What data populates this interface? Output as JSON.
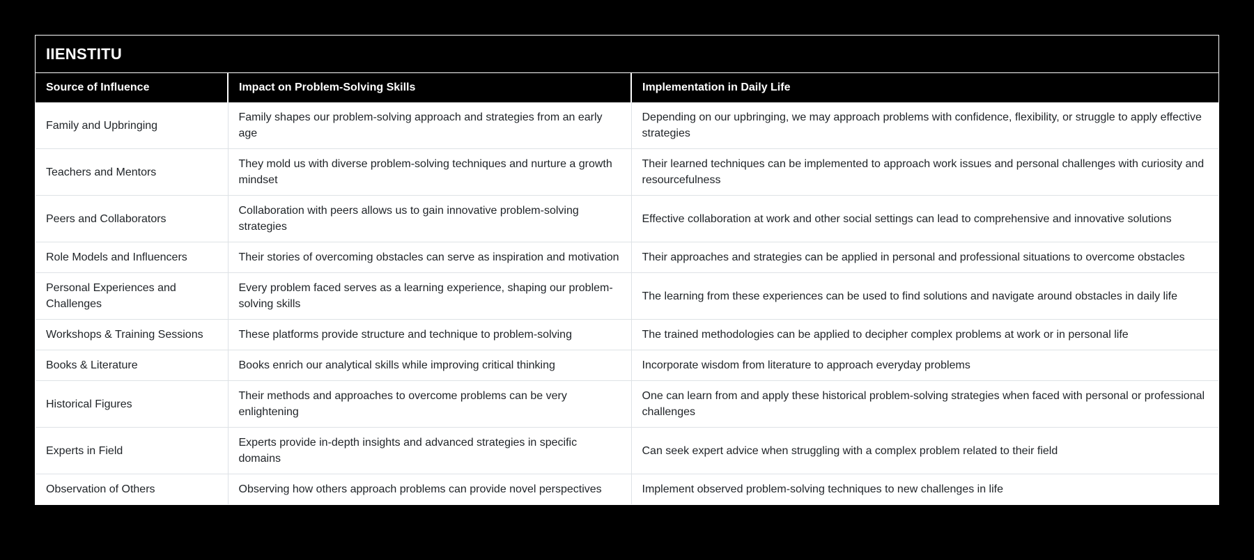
{
  "page": {
    "background_color": "#000000"
  },
  "card": {
    "title": "IIENSTITU",
    "border_color": "#ffffff",
    "title_text_color": "#ffffff"
  },
  "table": {
    "columns": [
      {
        "label": "Source of Influence"
      },
      {
        "label": "Impact on Problem-Solving Skills"
      },
      {
        "label": "Implementation in Daily Life"
      }
    ],
    "rows": [
      {
        "source": "Family and Upbringing",
        "impact": "Family shapes our problem-solving approach and strategies from an early age",
        "implementation": "Depending on our upbringing, we may approach problems with confidence, flexibility, or struggle to apply effective strategies"
      },
      {
        "source": "Teachers and Mentors",
        "impact": "They mold us with diverse problem-solving techniques and nurture a growth mindset",
        "implementation": "Their learned techniques can be implemented to approach work issues and personal challenges with curiosity and resourcefulness"
      },
      {
        "source": "Peers and Collaborators",
        "impact": "Collaboration with peers allows us to gain innovative problem-solving strategies",
        "implementation": "Effective collaboration at work and other social settings can lead to comprehensive and innovative solutions"
      },
      {
        "source": "Role Models and Influencers",
        "impact": "Their stories of overcoming obstacles can serve as inspiration and motivation",
        "implementation": "Their approaches and strategies can be applied in personal and professional situations to overcome obstacles"
      },
      {
        "source": "Personal Experiences and Challenges",
        "impact": "Every problem faced serves as a learning experience, shaping our problem-solving skills",
        "implementation": "The learning from these experiences can be used to find solutions and navigate around obstacles in daily life"
      },
      {
        "source": "Workshops & Training Sessions",
        "impact": "These platforms provide structure and technique to problem-solving",
        "implementation": "The trained methodologies can be applied to decipher complex problems at work or in personal life"
      },
      {
        "source": "Books & Literature",
        "impact": "Books enrich our analytical skills while improving critical thinking",
        "implementation": "Incorporate wisdom from literature to approach everyday problems"
      },
      {
        "source": "Historical Figures",
        "impact": "Their methods and approaches to overcome problems can be very enlightening",
        "implementation": "One can learn from and apply these historical problem-solving strategies when faced with personal or professional challenges"
      },
      {
        "source": "Experts in Field",
        "impact": "Experts provide in-depth insights and advanced strategies in specific domains",
        "implementation": "Can seek expert advice when struggling with a complex problem related to their field"
      },
      {
        "source": "Observation of Others",
        "impact": "Observing how others approach problems can provide novel perspectives",
        "implementation": "Implement observed problem-solving techniques to new challenges in life"
      }
    ],
    "colors": {
      "header_background": "#000000",
      "header_text": "#ffffff",
      "body_background": "#ffffff",
      "body_text": "#212529",
      "divider": "#dee2e6"
    }
  }
}
